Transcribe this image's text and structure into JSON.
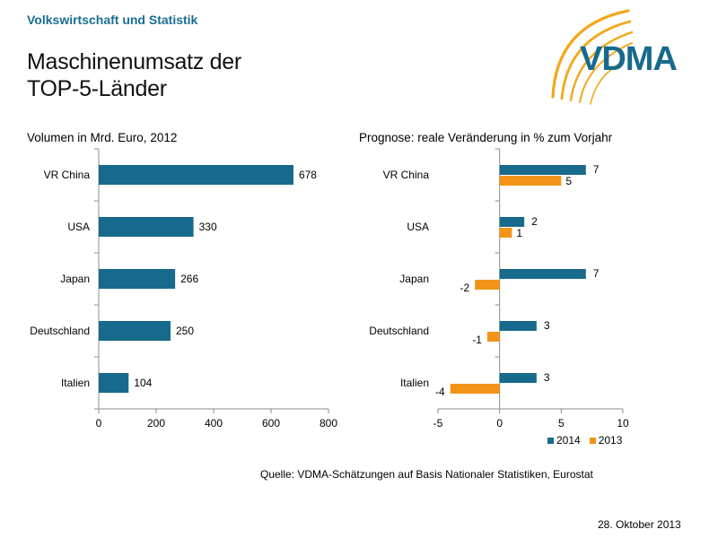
{
  "header": {
    "section_label": "Volkswirtschaft und Statistik",
    "title_line1": "Maschinenumsatz der",
    "title_line2": "TOP-5-Länder",
    "logo_text": "VDMA"
  },
  "colors": {
    "primary": "#176a8c",
    "secondary": "#f39418",
    "header_text": "#1a6e93",
    "axis": "#8c8c8c"
  },
  "chart_data": [
    {
      "type": "bar",
      "orientation": "horizontal",
      "title": "Volumen  in Mrd. Euro, 2012",
      "categories": [
        "VR China",
        "USA",
        "Japan",
        "Deutschland",
        "Italien"
      ],
      "values": [
        678,
        330,
        266,
        250,
        104
      ],
      "value_labels": [
        "678",
        "330",
        "266",
        "250",
        "104"
      ],
      "xlim": [
        0,
        800
      ],
      "xticks": [
        0,
        200,
        400,
        600,
        800
      ],
      "xtick_labels": [
        "0",
        "200",
        "400",
        "600",
        "800"
      ],
      "grid": false
    },
    {
      "type": "bar",
      "orientation": "horizontal",
      "title": "Prognose:  reale Veränderung  in % zum Vorjahr",
      "categories": [
        "VR China",
        "USA",
        "Japan",
        "Deutschland",
        "Italien"
      ],
      "series": [
        {
          "name": "2014",
          "values": [
            7,
            2,
            7,
            3,
            3
          ],
          "labels": [
            "7",
            "2",
            "7",
            "3",
            "3"
          ]
        },
        {
          "name": "2013",
          "values": [
            5,
            1,
            -2,
            -1,
            -4
          ],
          "labels": [
            "5",
            "1",
            "-2",
            "-1",
            "-4"
          ]
        }
      ],
      "xlim": [
        -5,
        10
      ],
      "xticks": [
        -5,
        0,
        5,
        10
      ],
      "xtick_labels": [
        "-5",
        "0",
        "5",
        "10"
      ],
      "legend": "bottom-right",
      "grid": false
    }
  ],
  "footer": {
    "source": "Quelle:  VDMA-Schätzungen auf Basis Nationaler Statistiken, Eurostat",
    "date": "28. Oktober 2013"
  }
}
